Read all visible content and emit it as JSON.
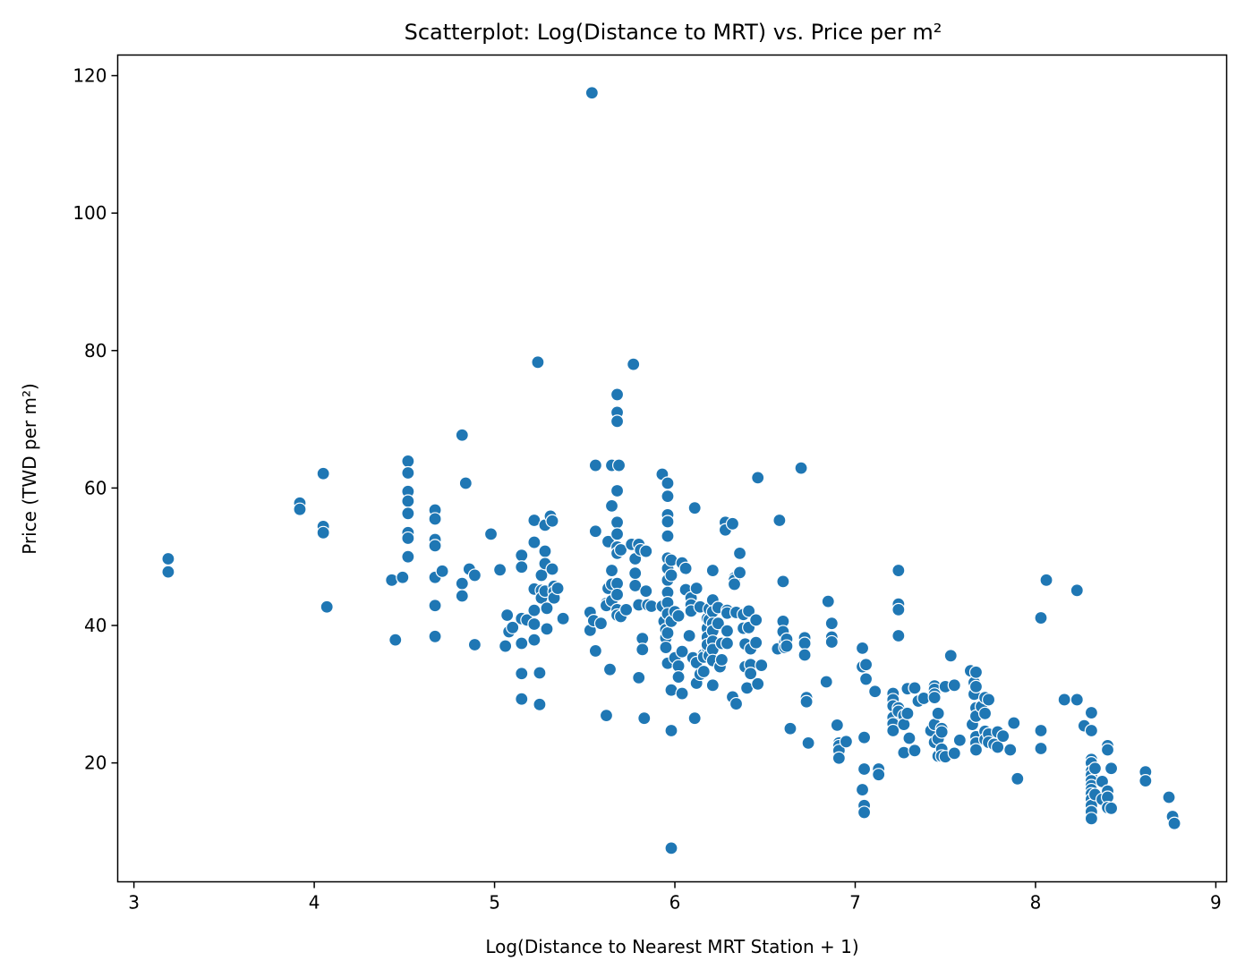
{
  "chart_data": {
    "type": "scatter",
    "title": "Scatterplot: Log(Distance to MRT) vs. Price per m²",
    "xlabel": "Log(Distance to Nearest MRT Station + 1)",
    "ylabel": "Price (TWD per m²)",
    "xlim": [
      2.91,
      9.06
    ],
    "ylim": [
      2.7,
      123.0
    ],
    "xticks": [
      3,
      4,
      5,
      6,
      7,
      8,
      9
    ],
    "yticks": [
      20,
      40,
      60,
      80,
      100,
      120
    ],
    "grid": false,
    "legend": "none",
    "marker_color": "#1f77b4",
    "marker_edge_color": "#ffffff",
    "points": [
      [
        3.19,
        49.7
      ],
      [
        3.19,
        47.8
      ],
      [
        3.92,
        57.8
      ],
      [
        3.92,
        56.9
      ],
      [
        4.05,
        62.1
      ],
      [
        4.05,
        54.4
      ],
      [
        4.05,
        53.5
      ],
      [
        4.07,
        42.7
      ],
      [
        4.43,
        46.6
      ],
      [
        4.45,
        37.9
      ],
      [
        4.49,
        47.0
      ],
      [
        4.52,
        63.9
      ],
      [
        4.52,
        62.2
      ],
      [
        4.52,
        59.5
      ],
      [
        4.52,
        58.1
      ],
      [
        4.52,
        56.3
      ],
      [
        4.52,
        53.5
      ],
      [
        4.52,
        52.7
      ],
      [
        4.52,
        50.0
      ],
      [
        4.67,
        56.8
      ],
      [
        4.67,
        55.5
      ],
      [
        4.67,
        52.5
      ],
      [
        4.67,
        51.6
      ],
      [
        4.67,
        47.0
      ],
      [
        4.67,
        42.9
      ],
      [
        4.67,
        38.4
      ],
      [
        4.71,
        47.9
      ],
      [
        4.82,
        67.7
      ],
      [
        4.82,
        46.1
      ],
      [
        4.82,
        44.3
      ],
      [
        4.84,
        60.7
      ],
      [
        4.86,
        48.2
      ],
      [
        4.89,
        47.3
      ],
      [
        4.89,
        37.2
      ],
      [
        4.98,
        53.3
      ],
      [
        5.03,
        48.1
      ],
      [
        5.06,
        37.0
      ],
      [
        5.07,
        41.5
      ],
      [
        5.08,
        39.1
      ],
      [
        5.1,
        39.7
      ],
      [
        5.15,
        50.2
      ],
      [
        5.15,
        48.5
      ],
      [
        5.15,
        41.0
      ],
      [
        5.15,
        37.4
      ],
      [
        5.15,
        33.0
      ],
      [
        5.15,
        29.3
      ],
      [
        5.18,
        40.8
      ],
      [
        5.22,
        55.3
      ],
      [
        5.22,
        52.1
      ],
      [
        5.22,
        45.3
      ],
      [
        5.22,
        42.2
      ],
      [
        5.22,
        40.2
      ],
      [
        5.22,
        37.9
      ],
      [
        5.24,
        78.3
      ],
      [
        5.25,
        33.1
      ],
      [
        5.25,
        28.5
      ],
      [
        5.26,
        47.3
      ],
      [
        5.26,
        45.1
      ],
      [
        5.26,
        44.0
      ],
      [
        5.28,
        54.6
      ],
      [
        5.28,
        50.8
      ],
      [
        5.28,
        49.0
      ],
      [
        5.28,
        45.0
      ],
      [
        5.29,
        42.5
      ],
      [
        5.29,
        39.5
      ],
      [
        5.31,
        55.9
      ],
      [
        5.32,
        55.2
      ],
      [
        5.32,
        48.2
      ],
      [
        5.33,
        45.7
      ],
      [
        5.33,
        44.9
      ],
      [
        5.33,
        44.0
      ],
      [
        5.35,
        45.4
      ],
      [
        5.38,
        41.0
      ],
      [
        5.53,
        41.9
      ],
      [
        5.53,
        39.3
      ],
      [
        5.54,
        117.5
      ],
      [
        5.55,
        40.7
      ],
      [
        5.56,
        63.3
      ],
      [
        5.56,
        53.7
      ],
      [
        5.56,
        36.3
      ],
      [
        5.59,
        40.3
      ],
      [
        5.62,
        43.2
      ],
      [
        5.62,
        42.9
      ],
      [
        5.62,
        26.9
      ],
      [
        5.63,
        52.2
      ],
      [
        5.63,
        45.4
      ],
      [
        5.64,
        33.6
      ],
      [
        5.65,
        63.3
      ],
      [
        5.65,
        57.4
      ],
      [
        5.65,
        48.0
      ],
      [
        5.65,
        46.0
      ],
      [
        5.65,
        43.6
      ],
      [
        5.68,
        73.6
      ],
      [
        5.68,
        71.0
      ],
      [
        5.68,
        69.7
      ],
      [
        5.68,
        59.6
      ],
      [
        5.68,
        55.0
      ],
      [
        5.68,
        53.3
      ],
      [
        5.68,
        51.4
      ],
      [
        5.68,
        50.5
      ],
      [
        5.68,
        46.1
      ],
      [
        5.68,
        44.5
      ],
      [
        5.68,
        42.3
      ],
      [
        5.68,
        41.5
      ],
      [
        5.69,
        63.3
      ],
      [
        5.7,
        51.0
      ],
      [
        5.7,
        41.3
      ],
      [
        5.73,
        42.3
      ],
      [
        5.76,
        51.8
      ],
      [
        5.77,
        78.0
      ],
      [
        5.78,
        49.7
      ],
      [
        5.78,
        47.6
      ],
      [
        5.78,
        45.8
      ],
      [
        5.8,
        51.8
      ],
      [
        5.8,
        43.0
      ],
      [
        5.8,
        32.4
      ],
      [
        5.81,
        51.0
      ],
      [
        5.82,
        38.1
      ],
      [
        5.82,
        36.5
      ],
      [
        5.83,
        26.5
      ],
      [
        5.84,
        50.8
      ],
      [
        5.84,
        45.0
      ],
      [
        5.85,
        43.0
      ],
      [
        5.87,
        42.8
      ],
      [
        5.93,
        62.0
      ],
      [
        5.93,
        42.8
      ],
      [
        5.94,
        40.6
      ],
      [
        5.95,
        39.4
      ],
      [
        5.95,
        38.2
      ],
      [
        5.95,
        36.8
      ],
      [
        5.96,
        60.7
      ],
      [
        5.96,
        58.8
      ],
      [
        5.96,
        56.1
      ],
      [
        5.96,
        55.1
      ],
      [
        5.96,
        53.0
      ],
      [
        5.96,
        49.8
      ],
      [
        5.96,
        48.3
      ],
      [
        5.96,
        46.6
      ],
      [
        5.96,
        44.8
      ],
      [
        5.96,
        43.3
      ],
      [
        5.96,
        41.7
      ],
      [
        5.96,
        38.9
      ],
      [
        5.96,
        34.5
      ],
      [
        5.98,
        49.5
      ],
      [
        5.98,
        47.3
      ],
      [
        5.98,
        40.6
      ],
      [
        5.98,
        30.6
      ],
      [
        5.98,
        24.7
      ],
      [
        5.98,
        7.6
      ],
      [
        6.0,
        42.0
      ],
      [
        6.0,
        35.3
      ],
      [
        6.02,
        41.4
      ],
      [
        6.02,
        34.1
      ],
      [
        6.02,
        32.5
      ],
      [
        6.04,
        49.1
      ],
      [
        6.04,
        36.2
      ],
      [
        6.04,
        30.1
      ],
      [
        6.06,
        48.3
      ],
      [
        6.06,
        45.2
      ],
      [
        6.08,
        38.5
      ],
      [
        6.09,
        44.0
      ],
      [
        6.09,
        43.0
      ],
      [
        6.09,
        42.1
      ],
      [
        6.1,
        35.3
      ],
      [
        6.11,
        57.1
      ],
      [
        6.11,
        26.5
      ],
      [
        6.12,
        45.4
      ],
      [
        6.12,
        34.6
      ],
      [
        6.12,
        31.6
      ],
      [
        6.14,
        42.7
      ],
      [
        6.14,
        32.9
      ],
      [
        6.16,
        35.8
      ],
      [
        6.16,
        35.4
      ],
      [
        6.16,
        33.3
      ],
      [
        6.18,
        36.8
      ],
      [
        6.18,
        41.0
      ],
      [
        6.18,
        39.6
      ],
      [
        6.18,
        38.3
      ],
      [
        6.18,
        37.2
      ],
      [
        6.19,
        42.4
      ],
      [
        6.19,
        40.8
      ],
      [
        6.19,
        35.6
      ],
      [
        6.21,
        48.0
      ],
      [
        6.21,
        43.7
      ],
      [
        6.21,
        42.0
      ],
      [
        6.21,
        40.3
      ],
      [
        6.21,
        39.2
      ],
      [
        6.21,
        37.7
      ],
      [
        6.21,
        36.5
      ],
      [
        6.21,
        34.9
      ],
      [
        6.21,
        31.3
      ],
      [
        6.24,
        42.6
      ],
      [
        6.24,
        40.3
      ],
      [
        6.25,
        34.0
      ],
      [
        6.26,
        37.4
      ],
      [
        6.26,
        35.0
      ],
      [
        6.28,
        55.0
      ],
      [
        6.28,
        53.9
      ],
      [
        6.29,
        42.2
      ],
      [
        6.29,
        41.8
      ],
      [
        6.29,
        39.2
      ],
      [
        6.29,
        37.4
      ],
      [
        6.32,
        54.8
      ],
      [
        6.32,
        29.6
      ],
      [
        6.33,
        46.9
      ],
      [
        6.33,
        46.6
      ],
      [
        6.33,
        46.0
      ],
      [
        6.34,
        41.9
      ],
      [
        6.34,
        28.6
      ],
      [
        6.36,
        50.5
      ],
      [
        6.36,
        47.7
      ],
      [
        6.38,
        41.6
      ],
      [
        6.38,
        39.6
      ],
      [
        6.39,
        37.3
      ],
      [
        6.39,
        34.0
      ],
      [
        6.4,
        30.9
      ],
      [
        6.41,
        42.1
      ],
      [
        6.41,
        39.7
      ],
      [
        6.42,
        36.6
      ],
      [
        6.42,
        34.3
      ],
      [
        6.42,
        33.0
      ],
      [
        6.45,
        40.8
      ],
      [
        6.45,
        37.5
      ],
      [
        6.46,
        61.5
      ],
      [
        6.46,
        31.5
      ],
      [
        6.48,
        34.2
      ],
      [
        6.57,
        36.6
      ],
      [
        6.58,
        55.3
      ],
      [
        6.6,
        46.4
      ],
      [
        6.6,
        40.6
      ],
      [
        6.6,
        39.1
      ],
      [
        6.61,
        37.6
      ],
      [
        6.61,
        36.8
      ],
      [
        6.62,
        38.0
      ],
      [
        6.62,
        37.0
      ],
      [
        6.64,
        25.0
      ],
      [
        6.7,
        62.9
      ],
      [
        6.72,
        38.2
      ],
      [
        6.72,
        37.4
      ],
      [
        6.72,
        35.7
      ],
      [
        6.73,
        29.5
      ],
      [
        6.73,
        28.9
      ],
      [
        6.74,
        22.9
      ],
      [
        6.84,
        31.8
      ],
      [
        6.85,
        43.5
      ],
      [
        6.87,
        40.3
      ],
      [
        6.87,
        38.3
      ],
      [
        6.87,
        37.6
      ],
      [
        6.9,
        25.5
      ],
      [
        6.91,
        22.9
      ],
      [
        6.91,
        22.5
      ],
      [
        6.91,
        21.8
      ],
      [
        6.91,
        20.7
      ],
      [
        6.95,
        23.1
      ],
      [
        7.04,
        36.7
      ],
      [
        7.04,
        34.0
      ],
      [
        7.04,
        16.1
      ],
      [
        7.05,
        23.7
      ],
      [
        7.05,
        19.1
      ],
      [
        7.05,
        13.8
      ],
      [
        7.05,
        12.8
      ],
      [
        7.06,
        34.3
      ],
      [
        7.06,
        32.2
      ],
      [
        7.11,
        30.4
      ],
      [
        7.13,
        19.1
      ],
      [
        7.13,
        18.3
      ],
      [
        7.21,
        30.1
      ],
      [
        7.21,
        29.2
      ],
      [
        7.21,
        28.3
      ],
      [
        7.21,
        26.6
      ],
      [
        7.21,
        25.7
      ],
      [
        7.21,
        24.7
      ],
      [
        7.24,
        48.0
      ],
      [
        7.24,
        43.1
      ],
      [
        7.24,
        42.3
      ],
      [
        7.24,
        38.5
      ],
      [
        7.24,
        28.0
      ],
      [
        7.24,
        27.5
      ],
      [
        7.27,
        26.9
      ],
      [
        7.27,
        25.6
      ],
      [
        7.27,
        21.5
      ],
      [
        7.29,
        30.8
      ],
      [
        7.29,
        27.2
      ],
      [
        7.3,
        23.6
      ],
      [
        7.33,
        30.9
      ],
      [
        7.33,
        21.8
      ],
      [
        7.35,
        29.0
      ],
      [
        7.38,
        29.4
      ],
      [
        7.42,
        24.7
      ],
      [
        7.44,
        31.2
      ],
      [
        7.44,
        30.7
      ],
      [
        7.44,
        30.0
      ],
      [
        7.44,
        29.5
      ],
      [
        7.44,
        25.6
      ],
      [
        7.44,
        23.0
      ],
      [
        7.46,
        27.2
      ],
      [
        7.46,
        23.5
      ],
      [
        7.46,
        21.0
      ],
      [
        7.48,
        25.0
      ],
      [
        7.48,
        24.5
      ],
      [
        7.48,
        22.0
      ],
      [
        7.48,
        21.0
      ],
      [
        7.5,
        31.1
      ],
      [
        7.5,
        20.9
      ],
      [
        7.53,
        35.6
      ],
      [
        7.55,
        31.3
      ],
      [
        7.55,
        21.4
      ],
      [
        7.58,
        23.3
      ],
      [
        7.64,
        33.4
      ],
      [
        7.65,
        25.6
      ],
      [
        7.66,
        31.7
      ],
      [
        7.66,
        30.0
      ],
      [
        7.67,
        33.2
      ],
      [
        7.67,
        31.1
      ],
      [
        7.67,
        28.0
      ],
      [
        7.67,
        26.8
      ],
      [
        7.67,
        23.8
      ],
      [
        7.67,
        22.9
      ],
      [
        7.67,
        21.9
      ],
      [
        7.7,
        28.2
      ],
      [
        7.72,
        29.5
      ],
      [
        7.72,
        27.2
      ],
      [
        7.72,
        24.6
      ],
      [
        7.72,
        23.4
      ],
      [
        7.74,
        29.2
      ],
      [
        7.74,
        24.2
      ],
      [
        7.74,
        23.0
      ],
      [
        7.77,
        22.7
      ],
      [
        7.79,
        24.5
      ],
      [
        7.79,
        22.3
      ],
      [
        7.82,
        23.9
      ],
      [
        7.86,
        21.9
      ],
      [
        7.88,
        25.8
      ],
      [
        7.9,
        17.7
      ],
      [
        8.03,
        41.1
      ],
      [
        8.03,
        24.7
      ],
      [
        8.03,
        22.1
      ],
      [
        8.06,
        46.6
      ],
      [
        8.16,
        29.2
      ],
      [
        8.23,
        45.1
      ],
      [
        8.23,
        29.2
      ],
      [
        8.27,
        25.4
      ],
      [
        8.31,
        27.3
      ],
      [
        8.31,
        24.7
      ],
      [
        8.31,
        20.5
      ],
      [
        8.31,
        20.0
      ],
      [
        8.31,
        18.8
      ],
      [
        8.31,
        18.2
      ],
      [
        8.31,
        17.4
      ],
      [
        8.31,
        16.7
      ],
      [
        8.31,
        16.1
      ],
      [
        8.31,
        15.5
      ],
      [
        8.31,
        14.7
      ],
      [
        8.31,
        13.8
      ],
      [
        8.31,
        12.9
      ],
      [
        8.31,
        11.9
      ],
      [
        8.33,
        19.2
      ],
      [
        8.33,
        15.4
      ],
      [
        8.37,
        17.3
      ],
      [
        8.37,
        14.7
      ],
      [
        8.4,
        22.5
      ],
      [
        8.4,
        21.9
      ],
      [
        8.4,
        15.9
      ],
      [
        8.4,
        15.0
      ],
      [
        8.4,
        13.5
      ],
      [
        8.42,
        19.2
      ],
      [
        8.42,
        13.4
      ],
      [
        8.61,
        18.7
      ],
      [
        8.61,
        17.4
      ],
      [
        8.74,
        15.0
      ],
      [
        8.76,
        12.2
      ],
      [
        8.77,
        11.2
      ]
    ]
  }
}
